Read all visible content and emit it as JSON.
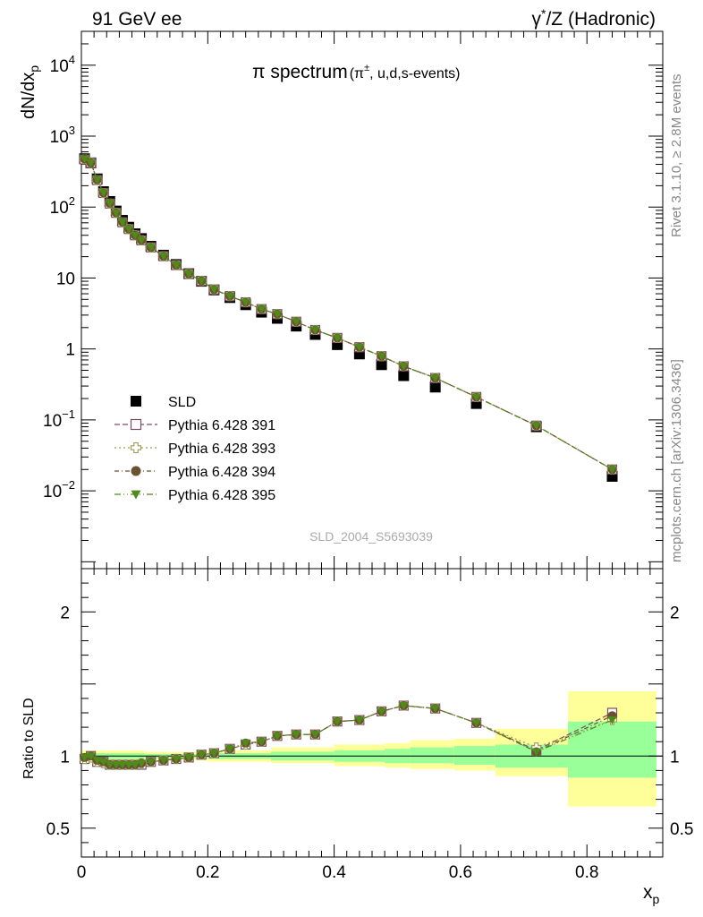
{
  "header": {
    "left": "91 GeV ee",
    "right_pre": "γ",
    "right_sup": "*",
    "right_post": "/Z (Hadronic)"
  },
  "plot_title": {
    "main": "π spectrum",
    "paren_open": "(π",
    "sup": "±",
    "paren_rest": ", u,d,s-events)"
  },
  "side_label_top": "Rivet 3.1.10, ≥ 2.8M events",
  "side_label_bottom": "mcplots.cern.ch [arXiv:1306.3436]",
  "watermark": "SLD_2004_S5693039",
  "main_ylabel": {
    "base": "dN/dx",
    "sub": "p"
  },
  "ratio_ylabel": "Ratio to SLD",
  "xlabel": {
    "base": "x",
    "sub": "p"
  },
  "main_yticks": [
    {
      "v": 10000,
      "base": "10",
      "exp": "4"
    },
    {
      "v": 1000,
      "base": "10",
      "exp": "3"
    },
    {
      "v": 100,
      "base": "10",
      "exp": "2"
    },
    {
      "v": 10,
      "base": "10",
      "exp": ""
    },
    {
      "v": 1,
      "base": "1",
      "exp": ""
    },
    {
      "v": 0.1,
      "base": "10",
      "exp": "−1"
    },
    {
      "v": 0.01,
      "base": "10",
      "exp": "−2"
    }
  ],
  "ratio_yticks": [
    {
      "v": 0.5,
      "label": "0.5"
    },
    {
      "v": 1,
      "label": "1"
    },
    {
      "v": 2,
      "label": "2"
    }
  ],
  "xticks": [
    {
      "v": 0,
      "label": "0"
    },
    {
      "v": 0.2,
      "label": "0.2"
    },
    {
      "v": 0.4,
      "label": "0.4"
    },
    {
      "v": 0.6,
      "label": "0.6"
    },
    {
      "v": 0.8,
      "label": "0.8"
    }
  ],
  "legend": [
    {
      "name": "SLD",
      "marker": "square-filled",
      "color": "#000000"
    },
    {
      "name": "Pythia 6.428 391",
      "marker": "square-open",
      "color": "#7b4a64"
    },
    {
      "name": "Pythia 6.428 393",
      "marker": "cross-open",
      "color": "#a09a52"
    },
    {
      "name": "Pythia 6.428 394",
      "marker": "circle-filled",
      "color": "#6b5130"
    },
    {
      "name": "Pythia 6.428 395",
      "marker": "triangle-down",
      "color": "#4f8a1b"
    }
  ],
  "colors": {
    "band_inner": "#99ff99",
    "band_outer": "#ffff99"
  },
  "chart_data": {
    "type": "scatter",
    "x_range": [
      0,
      0.92
    ],
    "main_yscale": "log",
    "main_ylim": [
      0.0008,
      30000
    ],
    "ratio_ylim": [
      0.3,
      2.3
    ],
    "x": [
      0.005,
      0.015,
      0.025,
      0.035,
      0.045,
      0.055,
      0.065,
      0.075,
      0.085,
      0.095,
      0.11,
      0.13,
      0.15,
      0.17,
      0.19,
      0.21,
      0.235,
      0.26,
      0.285,
      0.31,
      0.34,
      0.37,
      0.405,
      0.44,
      0.475,
      0.51,
      0.56,
      0.625,
      0.72,
      0.84
    ],
    "series": [
      {
        "name": "SLD",
        "values": [
          480,
          420,
          250,
          165,
          120,
          88,
          65,
          52,
          42,
          36,
          28,
          21,
          15.5,
          11.5,
          9,
          6.8,
          5.3,
          4.2,
          3.3,
          2.7,
          2.1,
          1.6,
          1.15,
          0.85,
          0.6,
          0.42,
          0.29,
          0.17,
          0.08,
          0.016
        ],
        "ratio": [
          1,
          1,
          1,
          1,
          1,
          1,
          1,
          1,
          1,
          1,
          1,
          1,
          1,
          1,
          1,
          1,
          1,
          1,
          1,
          1,
          1,
          1,
          1,
          1,
          1,
          1,
          1,
          1,
          1,
          1
        ]
      },
      {
        "name": "Pythia 6.428 391",
        "values": [
          470,
          420,
          240,
          158,
          112,
          83,
          61,
          49,
          40,
          34,
          27,
          20.3,
          15.2,
          11.4,
          9.1,
          6.9,
          5.55,
          4.55,
          3.65,
          3.1,
          2.42,
          1.85,
          1.43,
          1.06,
          0.79,
          0.57,
          0.39,
          0.21,
          0.083,
          0.02
        ],
        "ratio": [
          0.98,
          1.0,
          0.96,
          0.96,
          0.94,
          0.94,
          0.94,
          0.94,
          0.94,
          0.94,
          0.96,
          0.97,
          0.98,
          0.99,
          1.01,
          1.02,
          1.05,
          1.08,
          1.1,
          1.14,
          1.15,
          1.15,
          1.24,
          1.25,
          1.31,
          1.35,
          1.33,
          1.23,
          1.04,
          1.3
        ]
      },
      {
        "name": "Pythia 6.428 393",
        "values": [
          470,
          420,
          240,
          158,
          112,
          83,
          61,
          49,
          40,
          34,
          27,
          20.3,
          15.2,
          11.4,
          9.1,
          6.9,
          5.55,
          4.55,
          3.65,
          3.1,
          2.42,
          1.85,
          1.43,
          1.06,
          0.79,
          0.57,
          0.39,
          0.21,
          0.083,
          0.02
        ],
        "ratio": [
          0.98,
          0.99,
          0.96,
          0.95,
          0.94,
          0.94,
          0.94,
          0.94,
          0.94,
          0.95,
          0.96,
          0.97,
          0.98,
          0.99,
          1.01,
          1.02,
          1.05,
          1.08,
          1.1,
          1.14,
          1.15,
          1.15,
          1.24,
          1.25,
          1.31,
          1.35,
          1.33,
          1.23,
          1.06,
          1.25
        ]
      },
      {
        "name": "Pythia 6.428 394",
        "values": [
          475,
          420,
          242,
          159,
          113,
          83,
          61.5,
          49,
          40,
          34,
          27,
          20.3,
          15.2,
          11.4,
          9.1,
          6.9,
          5.55,
          4.55,
          3.65,
          3.1,
          2.42,
          1.85,
          1.43,
          1.06,
          0.79,
          0.57,
          0.39,
          0.21,
          0.083,
          0.02
        ],
        "ratio": [
          0.99,
          1.0,
          0.97,
          0.96,
          0.94,
          0.94,
          0.94,
          0.94,
          0.94,
          0.95,
          0.96,
          0.97,
          0.98,
          0.99,
          1.01,
          1.02,
          1.05,
          1.09,
          1.1,
          1.14,
          1.15,
          1.15,
          1.24,
          1.25,
          1.31,
          1.35,
          1.33,
          1.23,
          1.03,
          1.28
        ]
      },
      {
        "name": "Pythia 6.428 395",
        "values": [
          475,
          420,
          242,
          159,
          113,
          83,
          61.5,
          49,
          40,
          34,
          27,
          20.3,
          15.2,
          11.4,
          9.1,
          6.9,
          5.55,
          4.55,
          3.65,
          3.1,
          2.42,
          1.85,
          1.43,
          1.06,
          0.79,
          0.57,
          0.39,
          0.21,
          0.083,
          0.02
        ],
        "ratio": [
          0.99,
          1.0,
          0.97,
          0.96,
          0.94,
          0.94,
          0.94,
          0.94,
          0.94,
          0.95,
          0.96,
          0.97,
          0.98,
          0.99,
          1.01,
          1.02,
          1.05,
          1.09,
          1.1,
          1.14,
          1.15,
          1.15,
          1.24,
          1.25,
          1.31,
          1.35,
          1.33,
          1.23,
          1.03,
          1.25
        ]
      }
    ],
    "uncertainty_bands": [
      {
        "x0": 0.0,
        "x1": 0.1,
        "inner": [
          0.98,
          1.02
        ],
        "outer": [
          0.96,
          1.04
        ]
      },
      {
        "x0": 0.1,
        "x1": 0.2,
        "inner": [
          0.985,
          1.015
        ],
        "outer": [
          0.97,
          1.03
        ]
      },
      {
        "x0": 0.2,
        "x1": 0.3,
        "inner": [
          0.98,
          1.02
        ],
        "outer": [
          0.96,
          1.04
        ]
      },
      {
        "x0": 0.3,
        "x1": 0.4,
        "inner": [
          0.97,
          1.03
        ],
        "outer": [
          0.95,
          1.06
        ]
      },
      {
        "x0": 0.4,
        "x1": 0.48,
        "inner": [
          0.96,
          1.04
        ],
        "outer": [
          0.93,
          1.08
        ]
      },
      {
        "x0": 0.48,
        "x1": 0.52,
        "inner": [
          0.95,
          1.05
        ],
        "outer": [
          0.92,
          1.09
        ]
      },
      {
        "x0": 0.52,
        "x1": 0.59,
        "inner": [
          0.95,
          1.06
        ],
        "outer": [
          0.91,
          1.11
        ]
      },
      {
        "x0": 0.59,
        "x1": 0.655,
        "inner": [
          0.94,
          1.07
        ],
        "outer": [
          0.9,
          1.12
        ]
      },
      {
        "x0": 0.655,
        "x1": 0.77,
        "inner": [
          0.92,
          1.08
        ],
        "outer": [
          0.86,
          1.19
        ]
      },
      {
        "x0": 0.77,
        "x1": 0.91,
        "inner": [
          0.85,
          1.24
        ],
        "outer": [
          0.65,
          1.45
        ]
      }
    ]
  }
}
